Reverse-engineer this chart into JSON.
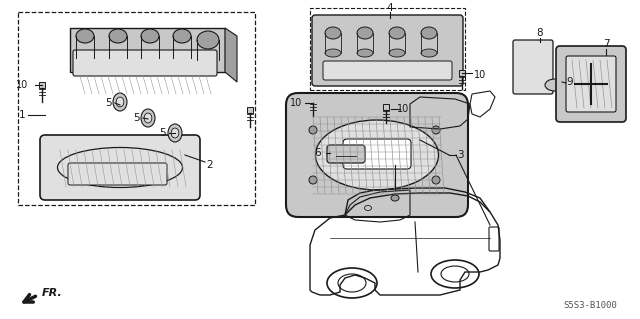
{
  "bg_color": "#ffffff",
  "diagram_code": "S5S3-B1000",
  "fr_label": "FR.",
  "line_color": "#1a1a1a",
  "gray_fill": "#c8c8c8",
  "gray_dark": "#a0a0a0",
  "gray_light": "#e0e0e0"
}
